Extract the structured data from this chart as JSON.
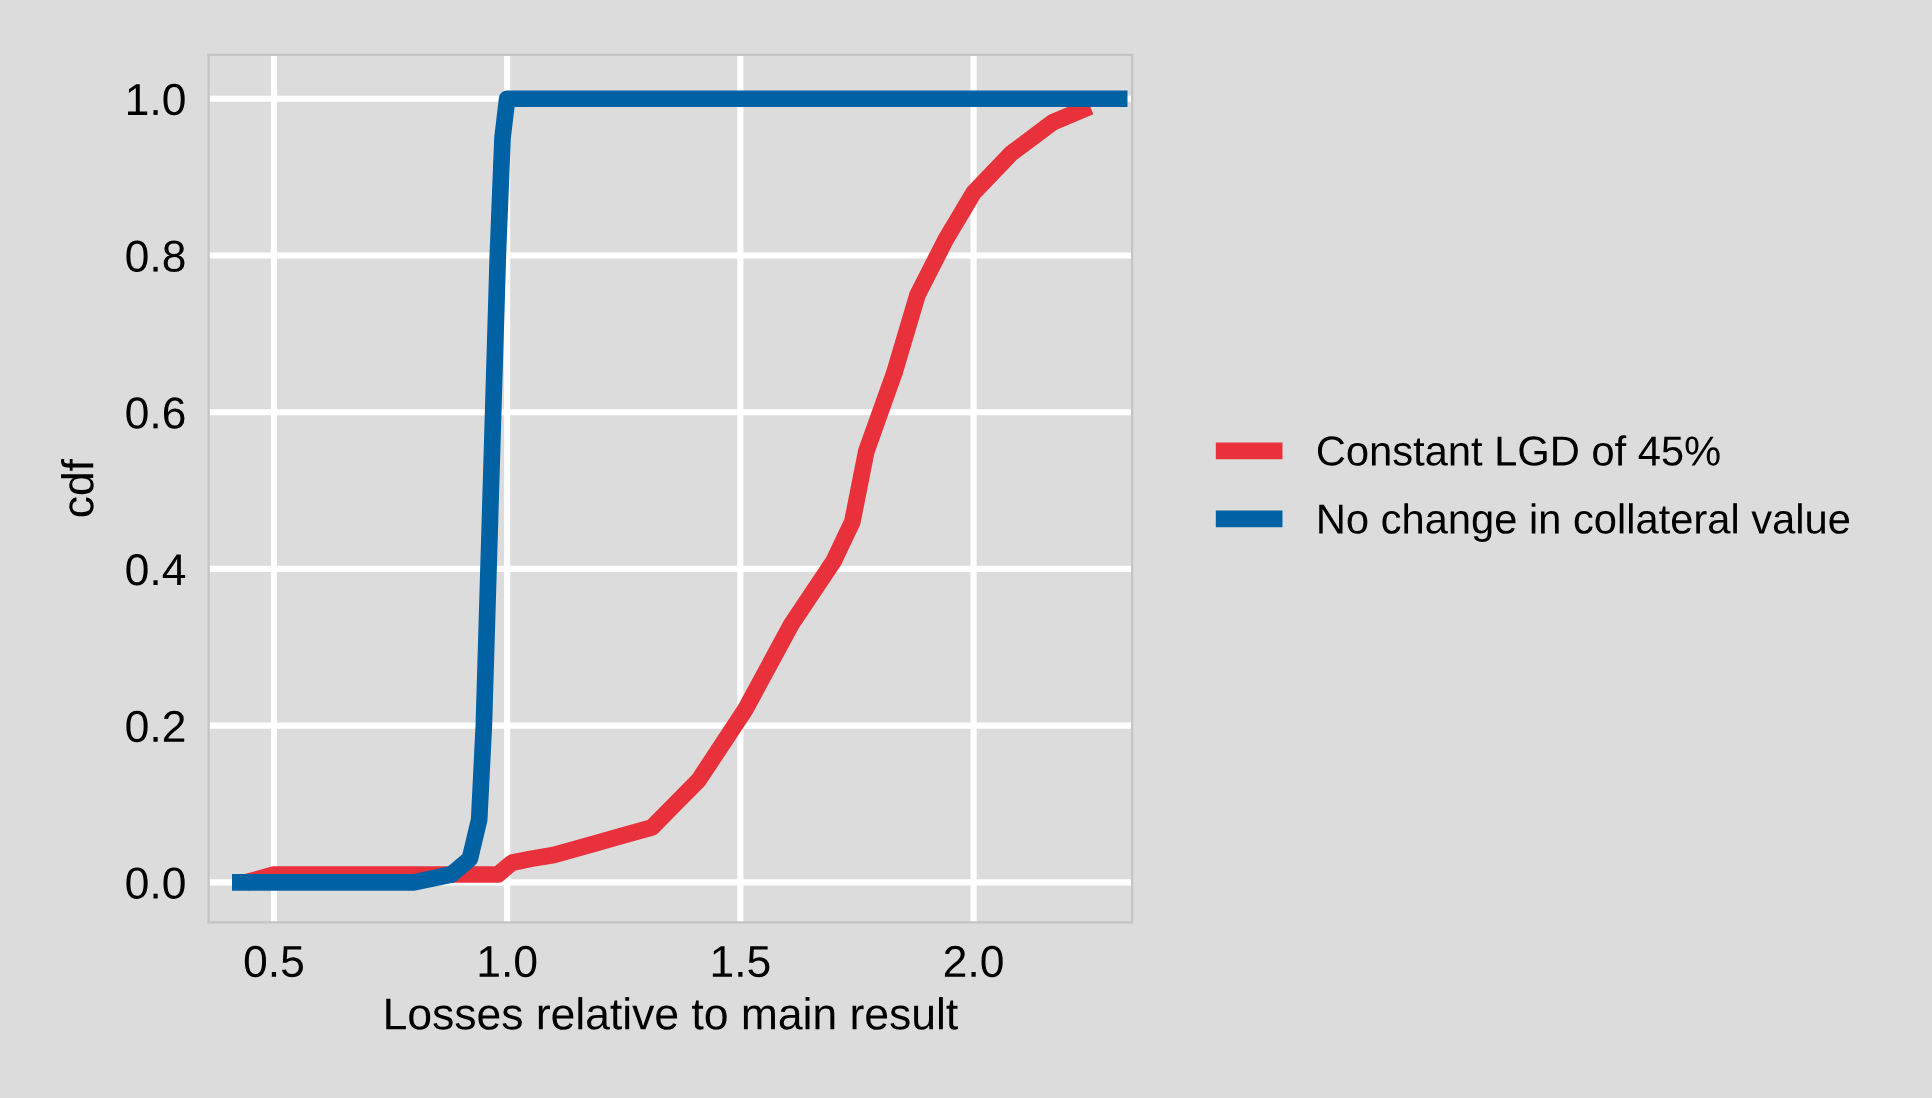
{
  "chart_data": {
    "type": "line",
    "xlabel": "Losses relative to main result",
    "ylabel": "cdf",
    "xlim": [
      0.36,
      2.34
    ],
    "ylim": [
      -0.051,
      1.056
    ],
    "xticks": [
      {
        "value": 0.5,
        "label": "0.5"
      },
      {
        "value": 1.0,
        "label": "1.0"
      },
      {
        "value": 1.5,
        "label": "1.5"
      },
      {
        "value": 2.0,
        "label": "2.0"
      }
    ],
    "yticks": [
      {
        "value": 0,
        "label": "0.0"
      },
      {
        "value": 0.2,
        "label": "0.2"
      },
      {
        "value": 0.4,
        "label": "0.4"
      },
      {
        "value": 0.6,
        "label": "0.6"
      },
      {
        "value": 0.8,
        "label": "0.8"
      },
      {
        "value": 1.0,
        "label": "1.0"
      }
    ],
    "grid": true,
    "legend": "right",
    "marker": "none",
    "line_style": "solid",
    "series": [
      {
        "name": "Constant LGD of 45%",
        "color": "#e8313a",
        "x": [
          0.44,
          0.5,
          0.7,
          0.9,
          0.98,
          1.01,
          1.05,
          1.1,
          1.19,
          1.25,
          1.31,
          1.36,
          1.41,
          1.51,
          1.61,
          1.7,
          1.74,
          1.77,
          1.83,
          1.88,
          1.94,
          2.0,
          2.08,
          2.17,
          2.25
        ],
        "values": [
          0.0,
          0.01,
          0.01,
          0.01,
          0.01,
          0.025,
          0.03,
          0.035,
          0.05,
          0.06,
          0.07,
          0.1,
          0.13,
          0.22,
          0.33,
          0.41,
          0.46,
          0.55,
          0.65,
          0.75,
          0.82,
          0.88,
          0.93,
          0.97,
          0.99
        ]
      },
      {
        "name": "No change in collateral value",
        "color": "#0061a3",
        "x": [
          0.41,
          0.8,
          0.88,
          0.92,
          0.94,
          0.95,
          0.96,
          0.97,
          0.98,
          0.99,
          1.0,
          2.33
        ],
        "values": [
          0.0,
          0.0,
          0.01,
          0.03,
          0.08,
          0.2,
          0.4,
          0.6,
          0.8,
          0.95,
          1.0,
          1.0
        ]
      }
    ]
  }
}
